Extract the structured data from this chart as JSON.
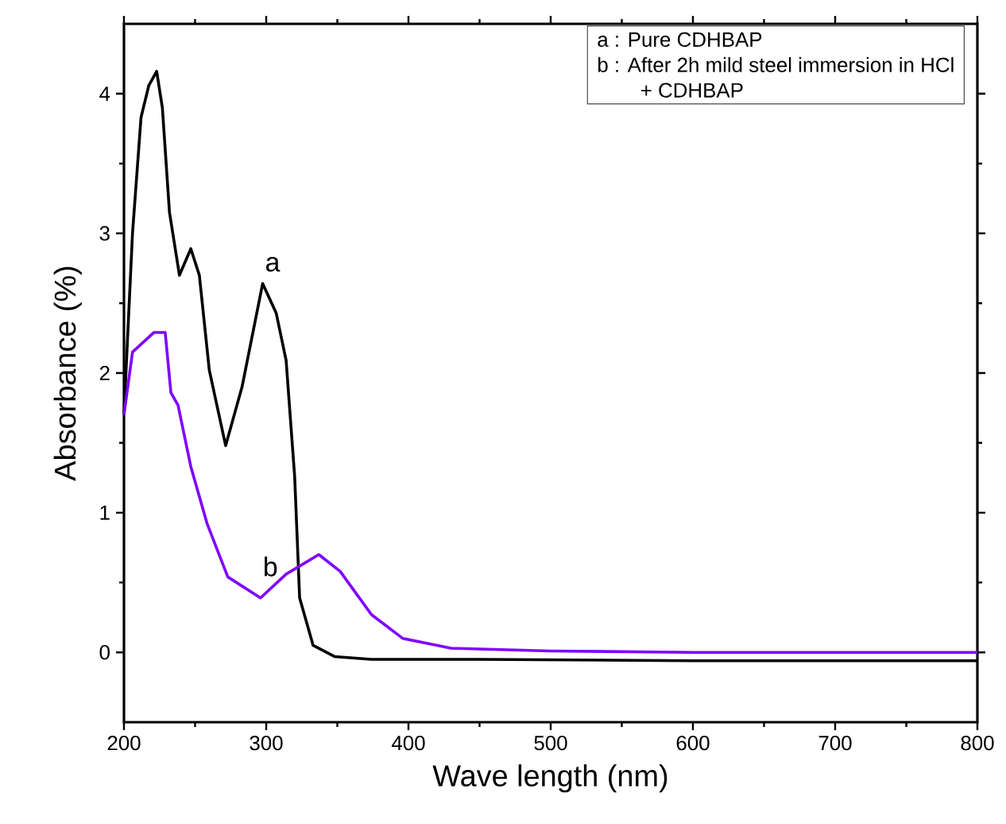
{
  "chart_data": {
    "type": "line",
    "xlabel": "Wave length (nm)",
    "ylabel": "Absorbance (%)",
    "xlim": [
      200,
      800
    ],
    "ylim": [
      -0.5,
      4.5
    ],
    "xticks": [
      200,
      300,
      400,
      500,
      600,
      700,
      800
    ],
    "yticks": [
      0,
      1,
      2,
      3,
      4
    ],
    "grid": false,
    "marker": "none",
    "line_style": "solid",
    "series": [
      {
        "name": "a",
        "color": "#000000",
        "x": [
          200,
          206,
          212,
          217.5,
          223,
          227,
          232,
          239,
          247,
          253,
          260,
          271.5,
          283,
          297.5,
          307,
          314,
          320,
          323.5,
          333,
          348,
          374,
          450,
          600,
          800
        ],
        "values": [
          1.7,
          3.0,
          3.83,
          4.06,
          4.16,
          3.9,
          3.15,
          2.7,
          2.89,
          2.7,
          2.02,
          1.48,
          1.9,
          2.64,
          2.43,
          2.09,
          1.26,
          0.39,
          0.05,
          -0.03,
          -0.05,
          -0.05,
          -0.06,
          -0.06
        ]
      },
      {
        "name": "b",
        "color": "#7f00ff",
        "x": [
          200,
          206,
          221,
          229,
          233,
          238,
          247,
          258.5,
          273,
          296,
          314,
          337,
          352,
          374,
          396,
          430,
          500,
          600,
          800
        ],
        "values": [
          1.7,
          2.15,
          2.29,
          2.29,
          1.86,
          1.77,
          1.33,
          0.92,
          0.54,
          0.39,
          0.56,
          0.7,
          0.58,
          0.27,
          0.1,
          0.03,
          0.01,
          0.0,
          0.0
        ]
      }
    ],
    "annotations": [
      "a : Pure CDHBAP",
      "b : After 2h mild steel immersion in HCl",
      "+ CDHBAP"
    ]
  }
}
